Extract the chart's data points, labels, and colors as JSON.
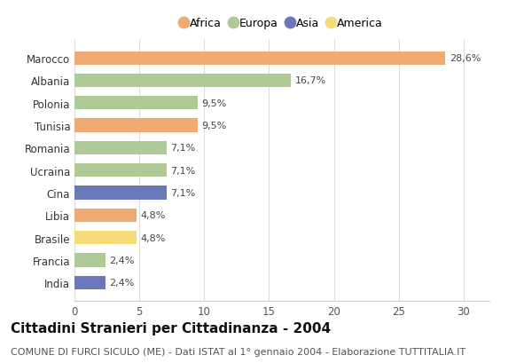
{
  "countries": [
    "India",
    "Francia",
    "Brasile",
    "Libia",
    "Cina",
    "Ucraina",
    "Romania",
    "Tunisia",
    "Polonia",
    "Albania",
    "Marocco"
  ],
  "values": [
    2.4,
    2.4,
    4.8,
    4.8,
    7.1,
    7.1,
    7.1,
    9.5,
    9.5,
    16.7,
    28.6
  ],
  "labels": [
    "2,4%",
    "2,4%",
    "4,8%",
    "4,8%",
    "7,1%",
    "7,1%",
    "7,1%",
    "9,5%",
    "9,5%",
    "16,7%",
    "28,6%"
  ],
  "continents": [
    "Asia",
    "Europa",
    "America",
    "Africa",
    "Asia",
    "Europa",
    "Europa",
    "Africa",
    "Europa",
    "Europa",
    "Africa"
  ],
  "colors": {
    "Africa": "#F0AA72",
    "Europa": "#AECA96",
    "Asia": "#6878B8",
    "America": "#F5DC78"
  },
  "legend_order": [
    "Africa",
    "Europa",
    "Asia",
    "America"
  ],
  "legend_colors": [
    "#F0AA72",
    "#AECA96",
    "#6878B8",
    "#F5DC78"
  ],
  "title": "Cittadini Stranieri per Cittadinanza - 2004",
  "subtitle": "COMUNE DI FURCI SICULO (ME) - Dati ISTAT al 1° gennaio 2004 - Elaborazione TUTTITALIA.IT",
  "xlim": [
    0,
    32
  ],
  "xticks": [
    0,
    5,
    10,
    15,
    20,
    25,
    30
  ],
  "background_color": "#ffffff",
  "bar_height": 0.6,
  "title_fontsize": 11,
  "subtitle_fontsize": 8,
  "label_fontsize": 8,
  "tick_fontsize": 8.5,
  "legend_fontsize": 9
}
